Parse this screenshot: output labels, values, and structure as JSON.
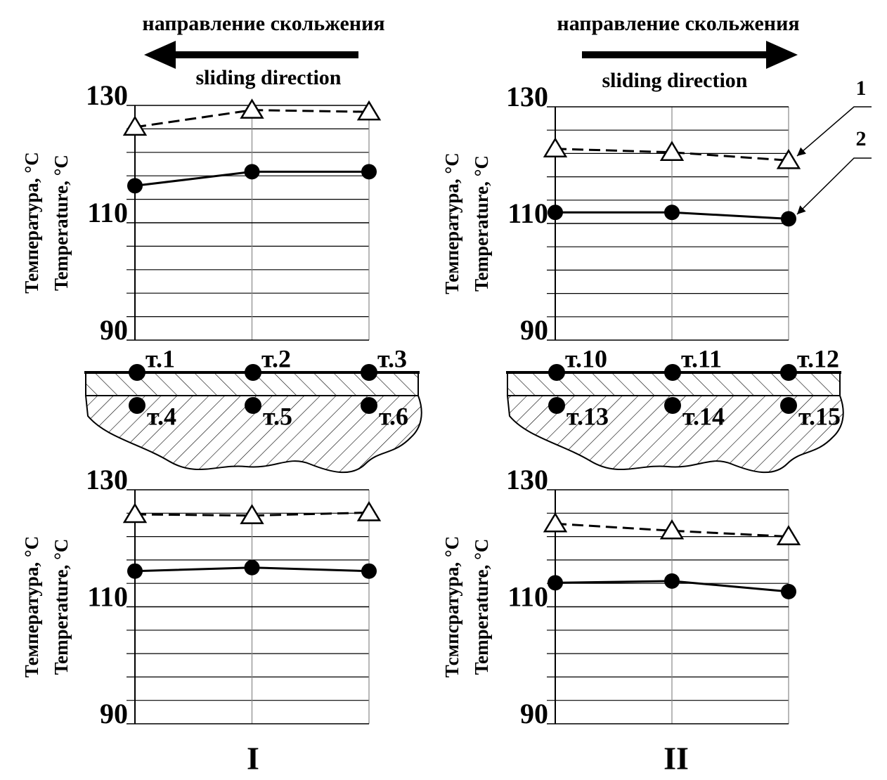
{
  "header": [
    {
      "ru": "направление скольжения",
      "en": "sliding direction"
    },
    {
      "ru": "направление скольжения",
      "en": "sliding direction"
    }
  ],
  "chart_data": [
    {
      "type": "line",
      "ylabel": [
        "Температура, °C",
        "Temperature, °C"
      ],
      "categories": [
        null,
        null,
        null
      ],
      "ylim": [
        90,
        130
      ],
      "yticks": [
        90,
        110,
        130
      ],
      "minor_yticks": [
        94,
        98,
        102,
        106,
        114,
        118,
        122,
        126
      ],
      "grid": true,
      "series": [
        {
          "color": "#000000",
          "dashed": true,
          "marker": "triangle",
          "values": [
            126.3,
            129.2,
            128.9
          ]
        },
        {
          "color": "#000000",
          "dashed": false,
          "marker": "circle",
          "values": [
            116.3,
            118.7,
            118.7
          ]
        }
      ]
    },
    {
      "type": "line",
      "ylabel": [
        "Температура, °C",
        "Temperature, °C"
      ],
      "categories": [
        null,
        null,
        null
      ],
      "ylim": [
        90,
        130
      ],
      "yticks": [
        90,
        110,
        130
      ],
      "minor_yticks": [
        94,
        98,
        102,
        106,
        114,
        118,
        122,
        126
      ],
      "grid": true,
      "series": [
        {
          "color": "#000000",
          "dashed": true,
          "marker": "triangle",
          "values": [
            122.8,
            122.2,
            120.8
          ]
        },
        {
          "color": "#000000",
          "dashed": false,
          "marker": "circle",
          "values": [
            111.9,
            111.9,
            110.8
          ]
        }
      ]
    },
    {
      "type": "line",
      "ylabel": [
        "Температура, °C",
        "Temperature, °C"
      ],
      "categories": [
        null,
        null,
        null
      ],
      "ylim": [
        90,
        130
      ],
      "yticks": [
        90,
        110,
        130
      ],
      "minor_yticks": [
        94,
        98,
        102,
        106,
        114,
        118,
        122,
        126
      ],
      "grid": true,
      "series": [
        {
          "color": "#000000",
          "dashed": true,
          "marker": "triangle",
          "values": [
            125.8,
            125.6,
            126.1
          ]
        },
        {
          "color": "#000000",
          "dashed": false,
          "marker": "circle",
          "values": [
            116.1,
            116.7,
            116.1
          ]
        }
      ]
    },
    {
      "type": "line",
      "ylabel": [
        "Тсмпсратура, °C",
        "Temperature, °C"
      ],
      "categories": [
        null,
        null,
        null
      ],
      "ylim": [
        90,
        130
      ],
      "yticks": [
        90,
        110,
        130
      ],
      "minor_yticks": [
        94,
        98,
        102,
        106,
        114,
        118,
        122,
        126
      ],
      "grid": true,
      "series": [
        {
          "color": "#000000",
          "dashed": true,
          "marker": "triangle",
          "values": [
            124.2,
            123.0,
            122.0
          ]
        },
        {
          "color": "#000000",
          "dashed": false,
          "marker": "circle",
          "values": [
            114.1,
            114.4,
            112.6
          ]
        }
      ]
    }
  ],
  "diagrams": [
    {
      "top_points": [
        "т.1",
        "т.2",
        "т.3"
      ],
      "bottom_points": [
        "т.4",
        "т.5",
        "т.6"
      ]
    },
    {
      "top_points": [
        "т.10",
        "т.11",
        "т.12"
      ],
      "bottom_points": [
        "т.13",
        "т.14",
        "т.15"
      ]
    }
  ],
  "annotations": [
    "1",
    "2"
  ],
  "panel_labels": [
    "I",
    "II"
  ]
}
